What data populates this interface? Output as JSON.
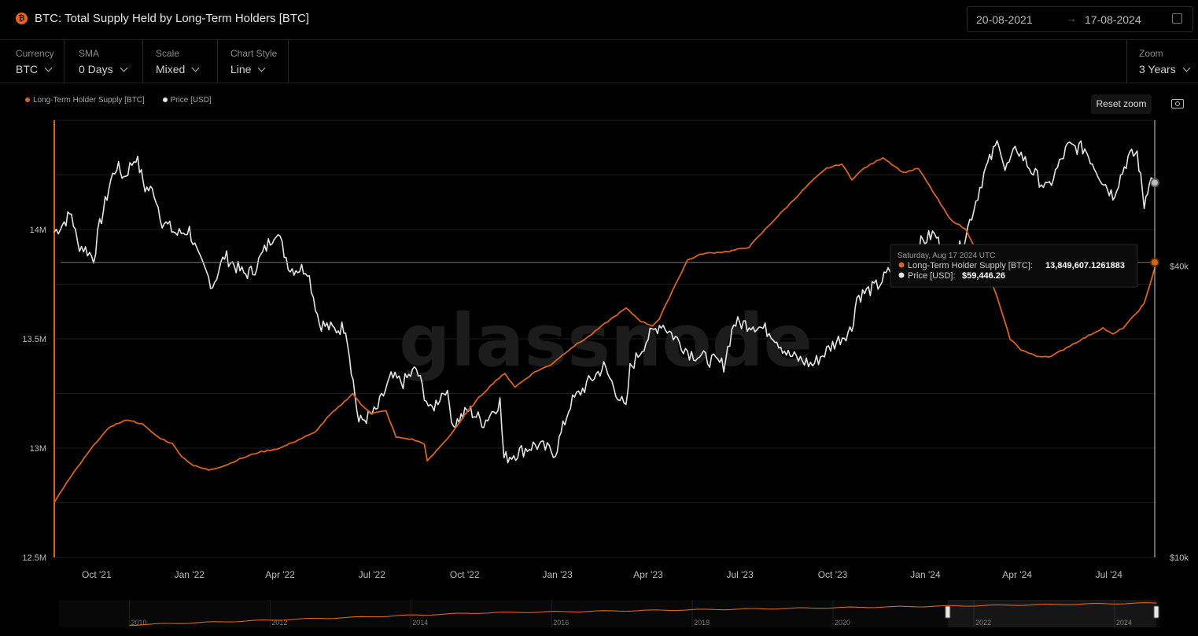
{
  "header": {
    "logo_symbol": "₿",
    "title": "BTC: Total Supply Held by Long-Term Holders [BTC]",
    "date_from": "20-08-2021",
    "date_arrow": "→",
    "date_to": "17-08-2024"
  },
  "controls": {
    "currency": {
      "label": "Currency",
      "value": "BTC"
    },
    "sma": {
      "label": "SMA",
      "value": "0 Days"
    },
    "scale": {
      "label": "Scale",
      "value": "Mixed"
    },
    "chart_style": {
      "label": "Chart Style",
      "value": "Line"
    },
    "zoom": {
      "label": "Zoom",
      "value": "3 Years"
    }
  },
  "reset_zoom_label": "Reset zoom",
  "watermark": "glassnode",
  "colors": {
    "lth": "#d9621c",
    "price": "#e4e4e4",
    "crosshair": "#ffffff"
  },
  "tooltip": {
    "date": "Saturday, Aug 17 2024 UTC",
    "lth_label": "Long-Term Holder Supply [BTC]:",
    "lth_value": "13,849,607.1261883",
    "price_label": "Price [USD]:",
    "price_value": "$59,446.26"
  },
  "chart_data": {
    "type": "line",
    "legend": [
      "Long-Term Holder Supply [BTC]",
      "Price [USD]"
    ],
    "legend_position": "top-left",
    "grid": true,
    "x_ticks": [
      "Oct '21",
      "Jan '22",
      "Apr '22",
      "Jul '22",
      "Oct '22",
      "Jan '23",
      "Apr '23",
      "Jul '23",
      "Oct '23",
      "Jan '24",
      "Apr '24",
      "Jul '24"
    ],
    "x_tick_dates": [
      "2021-10-01",
      "2022-01-01",
      "2022-04-01",
      "2022-07-01",
      "2022-10-01",
      "2023-01-01",
      "2023-04-01",
      "2023-07-01",
      "2023-10-01",
      "2024-01-01",
      "2024-04-01",
      "2024-07-01"
    ],
    "x_range": [
      "2021-08-20",
      "2024-08-17"
    ],
    "y_left": {
      "ticks": [
        12.5,
        13,
        13.5,
        14
      ],
      "tick_labels": [
        "12.5M",
        "13M",
        "13.5M",
        "14M"
      ],
      "range": [
        12.5,
        14.5
      ],
      "unit": "M BTC"
    },
    "y_right": {
      "scale": "log",
      "ticks": [
        10000,
        40000
      ],
      "tick_labels": [
        "$10k",
        "$40k"
      ],
      "range": [
        10000,
        80000
      ]
    },
    "series": [
      {
        "name": "Long-Term Holder Supply [BTC]",
        "axis": "left",
        "points": [
          [
            "2021-08-20",
            12.75
          ],
          [
            "2021-09-01",
            12.84
          ],
          [
            "2021-09-15",
            12.93
          ],
          [
            "2021-10-01",
            13.03
          ],
          [
            "2021-10-15",
            13.1
          ],
          [
            "2021-11-01",
            13.13
          ],
          [
            "2021-11-15",
            13.11
          ],
          [
            "2021-12-01",
            13.05
          ],
          [
            "2021-12-15",
            13.02
          ],
          [
            "2021-12-25",
            12.96
          ],
          [
            "2022-01-05",
            12.92
          ],
          [
            "2022-01-20",
            12.9
          ],
          [
            "2022-02-05",
            12.92
          ],
          [
            "2022-02-20",
            12.95
          ],
          [
            "2022-03-10",
            12.98
          ],
          [
            "2022-04-01",
            13.0
          ],
          [
            "2022-04-20",
            13.04
          ],
          [
            "2022-05-05",
            13.07
          ],
          [
            "2022-05-20",
            13.15
          ],
          [
            "2022-06-01",
            13.2
          ],
          [
            "2022-06-12",
            13.25
          ],
          [
            "2022-06-20",
            13.2
          ],
          [
            "2022-07-01",
            13.16
          ],
          [
            "2022-07-15",
            13.17
          ],
          [
            "2022-07-25",
            13.05
          ],
          [
            "2022-08-10",
            13.04
          ],
          [
            "2022-08-22",
            13.02
          ],
          [
            "2022-08-25",
            12.94
          ],
          [
            "2022-09-15",
            13.05
          ],
          [
            "2022-10-01",
            13.15
          ],
          [
            "2022-10-15",
            13.23
          ],
          [
            "2022-11-01",
            13.31
          ],
          [
            "2022-11-10",
            13.34
          ],
          [
            "2022-11-20",
            13.28
          ],
          [
            "2022-12-10",
            13.35
          ],
          [
            "2022-12-25",
            13.38
          ],
          [
            "2023-01-15",
            13.46
          ],
          [
            "2023-02-01",
            13.51
          ],
          [
            "2023-02-20",
            13.58
          ],
          [
            "2023-03-10",
            13.64
          ],
          [
            "2023-03-25",
            13.58
          ],
          [
            "2023-04-05",
            13.56
          ],
          [
            "2023-04-12",
            13.59
          ],
          [
            "2023-04-25",
            13.72
          ],
          [
            "2023-05-10",
            13.86
          ],
          [
            "2023-05-25",
            13.89
          ],
          [
            "2023-06-20",
            13.9
          ],
          [
            "2023-07-10",
            13.92
          ],
          [
            "2023-08-01",
            14.03
          ],
          [
            "2023-08-20",
            14.12
          ],
          [
            "2023-09-10",
            14.22
          ],
          [
            "2023-09-25",
            14.28
          ],
          [
            "2023-10-10",
            14.3
          ],
          [
            "2023-10-20",
            14.23
          ],
          [
            "2023-11-01",
            14.28
          ],
          [
            "2023-11-20",
            14.33
          ],
          [
            "2023-12-10",
            14.26
          ],
          [
            "2023-12-25",
            14.28
          ],
          [
            "2024-01-05",
            14.2
          ],
          [
            "2024-01-25",
            14.05
          ],
          [
            "2024-02-10",
            14.0
          ],
          [
            "2024-02-25",
            13.87
          ],
          [
            "2024-03-10",
            13.72
          ],
          [
            "2024-03-25",
            13.5
          ],
          [
            "2024-04-05",
            13.45
          ],
          [
            "2024-04-20",
            13.42
          ],
          [
            "2024-05-05",
            13.42
          ],
          [
            "2024-05-20",
            13.46
          ],
          [
            "2024-06-05",
            13.5
          ],
          [
            "2024-06-25",
            13.55
          ],
          [
            "2024-07-05",
            13.52
          ],
          [
            "2024-07-15",
            13.55
          ],
          [
            "2024-07-25",
            13.6
          ],
          [
            "2024-08-05",
            13.66
          ],
          [
            "2024-08-17",
            13.85
          ]
        ]
      },
      {
        "name": "Price [USD]",
        "axis": "right",
        "points": [
          [
            "2021-08-20",
            47000
          ],
          [
            "2021-08-28",
            48800
          ],
          [
            "2021-09-06",
            51500
          ],
          [
            "2021-09-12",
            44500
          ],
          [
            "2021-09-22",
            43000
          ],
          [
            "2021-09-28",
            41500
          ],
          [
            "2021-10-04",
            48500
          ],
          [
            "2021-10-15",
            60000
          ],
          [
            "2021-10-21",
            64500
          ],
          [
            "2021-10-28",
            61000
          ],
          [
            "2021-11-09",
            67500
          ],
          [
            "2021-11-18",
            58000
          ],
          [
            "2021-11-27",
            57000
          ],
          [
            "2021-12-05",
            49500
          ],
          [
            "2021-12-20",
            46500
          ],
          [
            "2022-01-01",
            47500
          ],
          [
            "2022-01-10",
            41500
          ],
          [
            "2022-01-24",
            36500
          ],
          [
            "2022-02-05",
            42000
          ],
          [
            "2022-02-24",
            38500
          ],
          [
            "2022-03-05",
            39000
          ],
          [
            "2022-03-28",
            47500
          ],
          [
            "2022-04-11",
            39500
          ],
          [
            "2022-04-28",
            39500
          ],
          [
            "2022-05-10",
            30500
          ],
          [
            "2022-05-25",
            29500
          ],
          [
            "2022-06-05",
            30000
          ],
          [
            "2022-06-18",
            19000
          ],
          [
            "2022-07-05",
            20000
          ],
          [
            "2022-07-20",
            23500
          ],
          [
            "2022-08-01",
            23000
          ],
          [
            "2022-08-14",
            24500
          ],
          [
            "2022-08-28",
            20000
          ],
          [
            "2022-09-12",
            22400
          ],
          [
            "2022-09-20",
            18800
          ],
          [
            "2022-10-05",
            20200
          ],
          [
            "2022-10-20",
            19000
          ],
          [
            "2022-11-05",
            21000
          ],
          [
            "2022-11-09",
            16000
          ],
          [
            "2022-12-10",
            17100
          ],
          [
            "2022-12-30",
            16500
          ],
          [
            "2023-01-14",
            20800
          ],
          [
            "2023-02-01",
            23000
          ],
          [
            "2023-02-16",
            24800
          ],
          [
            "2023-03-10",
            20100
          ],
          [
            "2023-03-14",
            24500
          ],
          [
            "2023-04-01",
            28500
          ],
          [
            "2023-04-14",
            30500
          ],
          [
            "2023-05-12",
            26500
          ],
          [
            "2023-06-15",
            25000
          ],
          [
            "2023-06-25",
            30500
          ],
          [
            "2023-07-14",
            30300
          ],
          [
            "2023-08-01",
            29200
          ],
          [
            "2023-08-18",
            26200
          ],
          [
            "2023-09-11",
            25000
          ],
          [
            "2023-10-01",
            27500
          ],
          [
            "2023-10-20",
            29700
          ],
          [
            "2023-10-25",
            34500
          ],
          [
            "2023-11-15",
            36500
          ],
          [
            "2023-12-05",
            41000
          ],
          [
            "2023-12-20",
            43500
          ],
          [
            "2024-01-08",
            46500
          ],
          [
            "2024-01-12",
            46000
          ],
          [
            "2024-01-23",
            39500
          ],
          [
            "2024-02-08",
            45000
          ],
          [
            "2024-02-28",
            62000
          ],
          [
            "2024-03-14",
            73000
          ],
          [
            "2024-03-20",
            63000
          ],
          [
            "2024-04-01",
            70000
          ],
          [
            "2024-04-13",
            64000
          ],
          [
            "2024-05-01",
            57500
          ],
          [
            "2024-05-21",
            70500
          ],
          [
            "2024-06-07",
            70000
          ],
          [
            "2024-06-24",
            60500
          ],
          [
            "2024-07-05",
            56000
          ],
          [
            "2024-07-20",
            67000
          ],
          [
            "2024-07-29",
            68500
          ],
          [
            "2024-08-05",
            53500
          ],
          [
            "2024-08-10",
            60500
          ],
          [
            "2024-08-17",
            59446.26
          ]
        ]
      }
    ],
    "navigator": {
      "year_labels": [
        "2010",
        "2012",
        "2014",
        "2016",
        "2018",
        "2020",
        "2022",
        "2024"
      ],
      "year_values": [
        2010,
        2012,
        2014,
        2016,
        2018,
        2020,
        2022,
        2024
      ]
    }
  }
}
